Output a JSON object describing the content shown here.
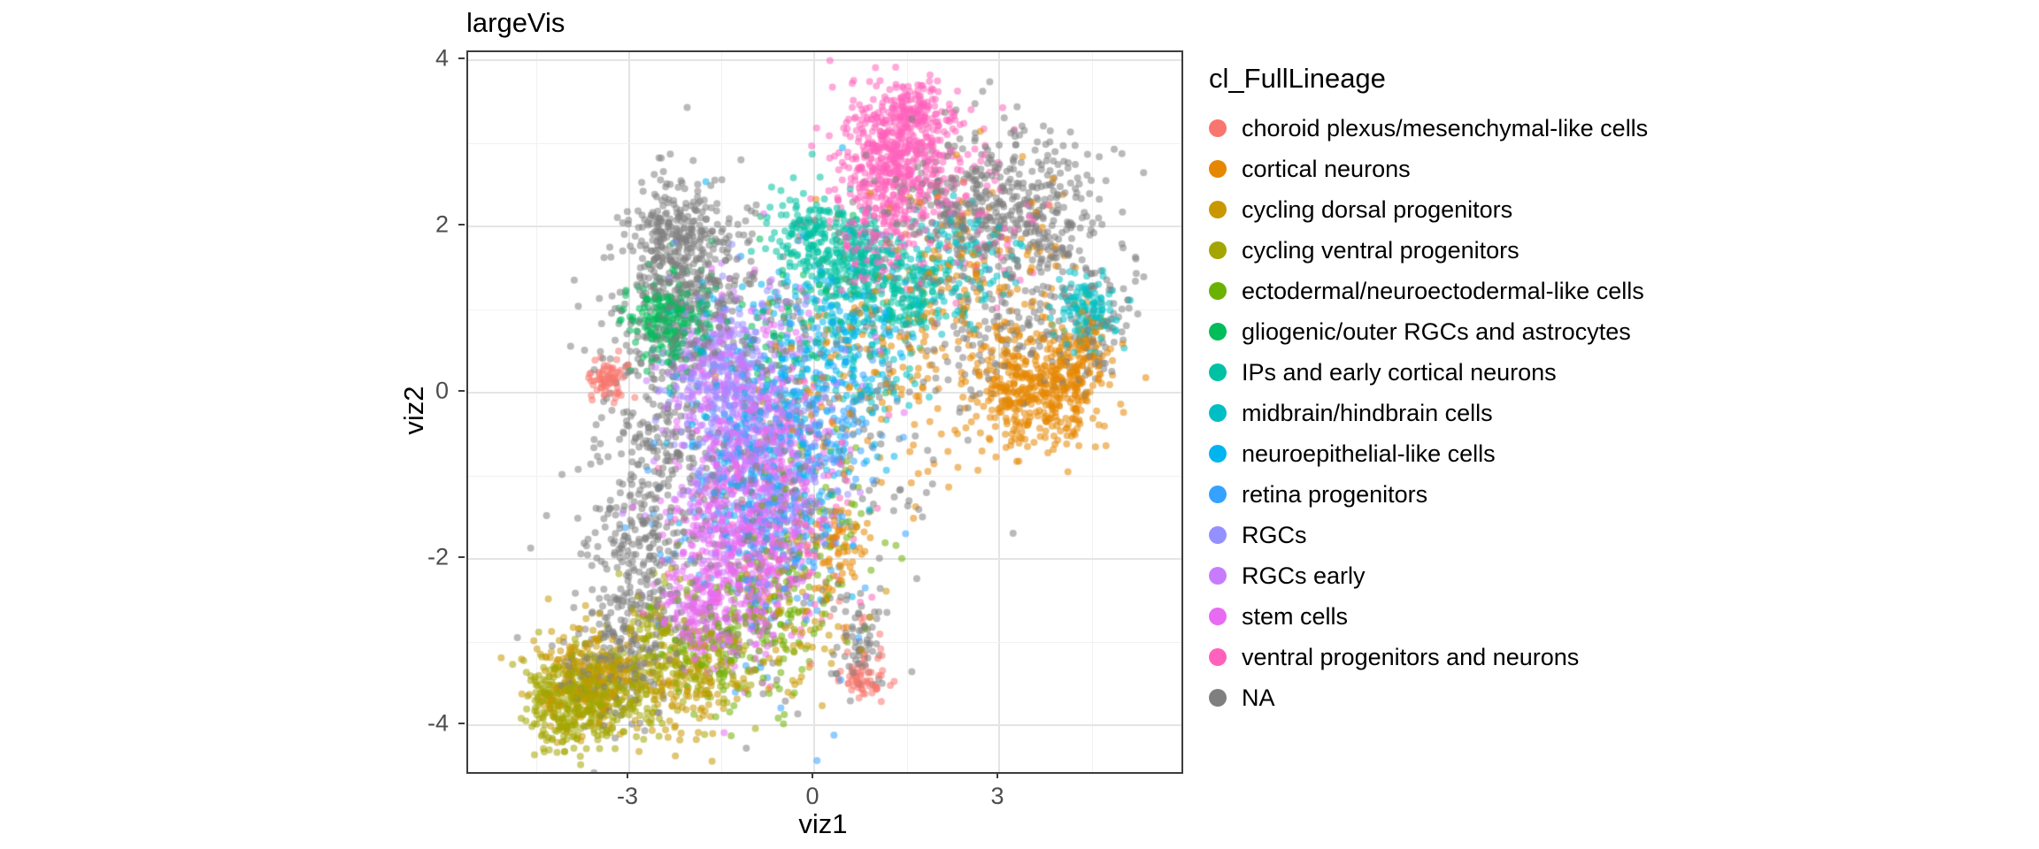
{
  "chart_data": {
    "type": "scatter",
    "title": "largeVis",
    "xlabel": "viz1",
    "ylabel": "viz2",
    "x_ticks": [
      -3,
      0,
      3
    ],
    "y_ticks": [
      -4,
      -2,
      0,
      2,
      4
    ],
    "xlim": [
      -5.6,
      5.95
    ],
    "ylim": [
      -4.55,
      4.1
    ],
    "grid": true,
    "legend_title": "cl_FullLineage",
    "legend_position": "right",
    "point_alpha": 0.55,
    "series": [
      {
        "name": "choroid plexus/mesenchymal-like cells",
        "color": "#F8766D",
        "clusters": [
          {
            "cx": -3.35,
            "cy": 0.15,
            "sdx": 0.15,
            "sdy": 0.14,
            "n": 70
          },
          {
            "cx": 0.85,
            "cy": -3.45,
            "sdx": 0.16,
            "sdy": 0.12,
            "n": 55
          },
          {
            "cx": 0.55,
            "cy": -3.0,
            "sdx": 0.25,
            "sdy": 0.25,
            "n": 15
          }
        ]
      },
      {
        "name": "cortical neurons",
        "color": "#E58700",
        "clusters": [
          {
            "cx": 3.55,
            "cy": 0.05,
            "sdx": 0.55,
            "sdy": 0.35,
            "n": 430
          },
          {
            "cx": 4.35,
            "cy": 0.45,
            "sdx": 0.22,
            "sdy": 0.28,
            "n": 110
          },
          {
            "cx": 2.7,
            "cy": 1.4,
            "sdx": 0.7,
            "sdy": 0.6,
            "n": 140
          },
          {
            "cx": 0.9,
            "cy": 0.3,
            "sdx": 0.9,
            "sdy": 0.8,
            "n": 150
          },
          {
            "cx": 0.35,
            "cy": -1.9,
            "sdx": 0.25,
            "sdy": 0.3,
            "n": 70
          }
        ]
      },
      {
        "name": "cycling dorsal progenitors",
        "color": "#C99800",
        "clusters": [
          {
            "cx": -3.6,
            "cy": -3.4,
            "sdx": 0.45,
            "sdy": 0.3,
            "n": 240
          },
          {
            "cx": -2.2,
            "cy": -3.55,
            "sdx": 0.45,
            "sdy": 0.28,
            "n": 110
          },
          {
            "cx": -0.5,
            "cy": -2.9,
            "sdx": 0.6,
            "sdy": 0.4,
            "n": 70
          }
        ]
      },
      {
        "name": "cycling ventral progenitors",
        "color": "#A3A500",
        "clusters": [
          {
            "cx": -4.0,
            "cy": -3.75,
            "sdx": 0.35,
            "sdy": 0.26,
            "n": 290
          },
          {
            "cx": -3.3,
            "cy": -3.6,
            "sdx": 0.4,
            "sdy": 0.3,
            "n": 190
          },
          {
            "cx": -2.6,
            "cy": -3.05,
            "sdx": 0.3,
            "sdy": 0.4,
            "n": 110
          },
          {
            "cx": -1.6,
            "cy": -3.3,
            "sdx": 0.45,
            "sdy": 0.3,
            "n": 90
          }
        ]
      },
      {
        "name": "ectodermal/neuroectodermal-like cells",
        "color": "#6BB100",
        "clusters": [
          {
            "cx": -1.4,
            "cy": -3.1,
            "sdx": 0.6,
            "sdy": 0.4,
            "n": 140
          },
          {
            "cx": -0.6,
            "cy": -2.4,
            "sdx": 0.5,
            "sdy": 0.4,
            "n": 90
          },
          {
            "cx": 0.2,
            "cy": -1.4,
            "sdx": 0.5,
            "sdy": 0.5,
            "n": 50
          }
        ]
      },
      {
        "name": "gliogenic/outer RGCs and astrocytes",
        "color": "#00BC59",
        "clusters": [
          {
            "cx": -2.35,
            "cy": 0.85,
            "sdx": 0.3,
            "sdy": 0.28,
            "n": 220
          },
          {
            "cx": -0.4,
            "cy": 0.9,
            "sdx": 0.7,
            "sdy": 0.5,
            "n": 70
          }
        ]
      },
      {
        "name": "IPs and early cortical neurons",
        "color": "#00C1A3",
        "clusters": [
          {
            "cx": 0.55,
            "cy": 1.65,
            "sdx": 0.45,
            "sdy": 0.3,
            "n": 240
          },
          {
            "cx": 1.4,
            "cy": 1.15,
            "sdx": 0.4,
            "sdy": 0.25,
            "n": 150
          },
          {
            "cx": -0.15,
            "cy": 1.95,
            "sdx": 0.3,
            "sdy": 0.22,
            "n": 90
          }
        ]
      },
      {
        "name": "midbrain/hindbrain cells",
        "color": "#00BFC4",
        "clusters": [
          {
            "cx": 4.4,
            "cy": 1.0,
            "sdx": 0.25,
            "sdy": 0.22,
            "n": 120
          },
          {
            "cx": 2.1,
            "cy": 1.5,
            "sdx": 0.6,
            "sdy": 0.4,
            "n": 130
          },
          {
            "cx": 0.9,
            "cy": 0.6,
            "sdx": 0.5,
            "sdy": 0.5,
            "n": 90
          }
        ]
      },
      {
        "name": "neuroepithelial-like cells",
        "color": "#00B4F0",
        "clusters": [
          {
            "cx": -0.6,
            "cy": -0.3,
            "sdx": 0.8,
            "sdy": 0.9,
            "n": 260
          },
          {
            "cx": 0.5,
            "cy": 0.8,
            "sdx": 0.5,
            "sdy": 0.5,
            "n": 110
          }
        ]
      },
      {
        "name": "retina progenitors",
        "color": "#35A2FF",
        "clusters": [
          {
            "cx": -0.8,
            "cy": -1.4,
            "sdx": 0.7,
            "sdy": 0.9,
            "n": 280
          },
          {
            "cx": 0.3,
            "cy": -0.3,
            "sdx": 0.5,
            "sdy": 0.6,
            "n": 100
          }
        ]
      },
      {
        "name": "RGCs",
        "color": "#9590FF",
        "clusters": [
          {
            "cx": -1.3,
            "cy": 0.1,
            "sdx": 0.5,
            "sdy": 0.6,
            "n": 240
          },
          {
            "cx": -0.5,
            "cy": -0.9,
            "sdx": 0.5,
            "sdy": 0.5,
            "n": 100
          }
        ]
      },
      {
        "name": "RGCs early",
        "color": "#C77CFF",
        "clusters": [
          {
            "cx": -1.2,
            "cy": -0.6,
            "sdx": 0.6,
            "sdy": 0.8,
            "n": 280
          },
          {
            "cx": -1.65,
            "cy": 0.3,
            "sdx": 0.4,
            "sdy": 0.4,
            "n": 150
          }
        ]
      },
      {
        "name": "stem cells",
        "color": "#E76BF3",
        "clusters": [
          {
            "cx": -1.3,
            "cy": -2.1,
            "sdx": 0.5,
            "sdy": 0.6,
            "n": 430
          },
          {
            "cx": -0.8,
            "cy": -1.2,
            "sdx": 0.5,
            "sdy": 0.6,
            "n": 240
          },
          {
            "cx": -1.9,
            "cy": -2.7,
            "sdx": 0.3,
            "sdy": 0.3,
            "n": 120
          },
          {
            "cx": -1.0,
            "cy": -0.2,
            "sdx": 0.7,
            "sdy": 0.8,
            "n": 140
          }
        ]
      },
      {
        "name": "ventral progenitors and neurons",
        "color": "#FF62BC",
        "clusters": [
          {
            "cx": 1.35,
            "cy": 2.85,
            "sdx": 0.45,
            "sdy": 0.4,
            "n": 480
          },
          {
            "cx": 1.7,
            "cy": 3.4,
            "sdx": 0.28,
            "sdy": 0.18,
            "n": 110
          },
          {
            "cx": 0.95,
            "cy": 1.9,
            "sdx": 0.35,
            "sdy": 0.35,
            "n": 140
          },
          {
            "cx": 2.4,
            "cy": 2.2,
            "sdx": 0.6,
            "sdy": 0.45,
            "n": 90
          },
          {
            "cx": -0.5,
            "cy": -1.6,
            "sdx": 0.8,
            "sdy": 0.8,
            "n": 110
          }
        ]
      },
      {
        "name": "NA",
        "color": "#7F7F7F",
        "clusters": [
          {
            "cx": -2.1,
            "cy": 1.3,
            "sdx": 0.55,
            "sdy": 0.55,
            "n": 340
          },
          {
            "cx": -2.3,
            "cy": 1.9,
            "sdx": 0.35,
            "sdy": 0.28,
            "n": 150
          },
          {
            "cx": -2.6,
            "cy": -0.5,
            "sdx": 0.45,
            "sdy": 1.0,
            "n": 240
          },
          {
            "cx": -2.9,
            "cy": -2.2,
            "sdx": 0.4,
            "sdy": 0.7,
            "n": 200
          },
          {
            "cx": -3.3,
            "cy": -3.3,
            "sdx": 0.5,
            "sdy": 0.4,
            "n": 150
          },
          {
            "cx": 2.6,
            "cy": 2.2,
            "sdx": 0.7,
            "sdy": 0.45,
            "n": 300
          },
          {
            "cx": 3.7,
            "cy": 2.2,
            "sdx": 0.5,
            "sdy": 0.45,
            "n": 180
          },
          {
            "cx": 3.2,
            "cy": 0.8,
            "sdx": 0.8,
            "sdy": 0.5,
            "n": 170
          },
          {
            "cx": 0.0,
            "cy": 0.0,
            "sdx": 1.6,
            "sdy": 1.2,
            "n": 260
          },
          {
            "cx": 0.75,
            "cy": -3.0,
            "sdx": 0.2,
            "sdy": 0.35,
            "n": 70
          },
          {
            "cx": 4.6,
            "cy": 0.9,
            "sdx": 0.3,
            "sdy": 0.4,
            "n": 60
          },
          {
            "cx": -1.1,
            "cy": -1.5,
            "sdx": 0.8,
            "sdy": 1.0,
            "n": 180
          }
        ]
      }
    ]
  }
}
